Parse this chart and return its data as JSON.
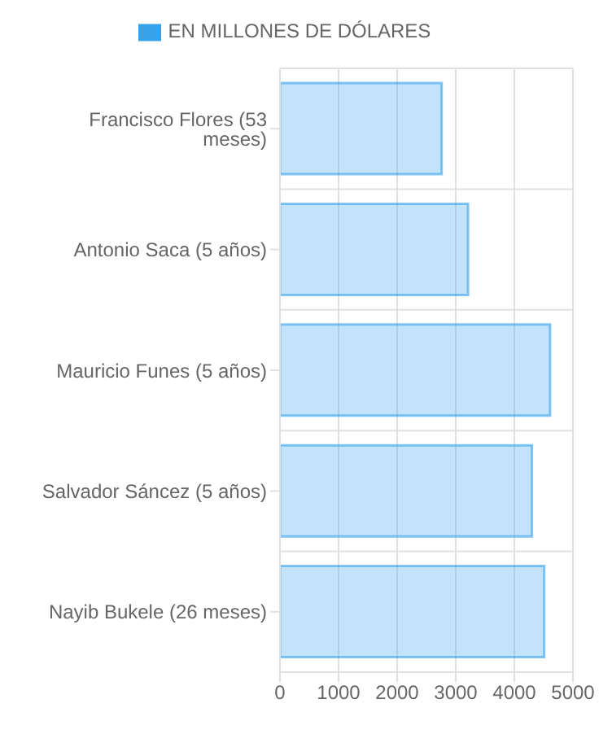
{
  "chart_data": {
    "type": "bar",
    "orientation": "horizontal",
    "categories": [
      "Francisco Flores (53 meses)",
      "Antonio Saca (5 años)",
      "Mauricio Funes (5 años)",
      "Salvador Sáncez (5 años)",
      "Nayib Bukele (26 meses)"
    ],
    "series": [
      {
        "name": "EN MILLONES DE DÓLARES",
        "color": "#36a2eb",
        "values": [
          2760,
          3210,
          4610,
          4300,
          4510
        ]
      }
    ],
    "xlim": [
      0,
      5000
    ],
    "xticks": [
      0,
      1000,
      2000,
      3000,
      4000,
      5000
    ],
    "grid": true,
    "legend": "top"
  }
}
